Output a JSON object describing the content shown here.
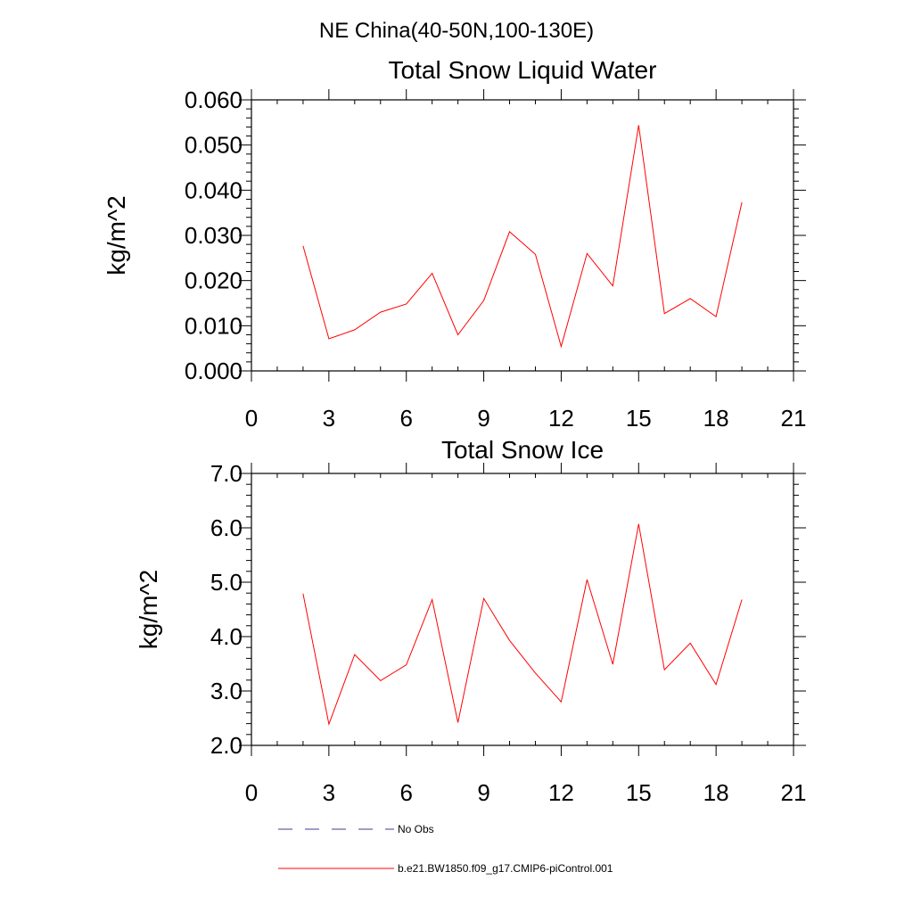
{
  "figure": {
    "suptitle": "NE China(40-50N,100-130E)"
  },
  "colors": {
    "model": "#ff0000",
    "obs": "#3c3c8c"
  },
  "legend": {
    "placement": "bottom-left",
    "entries": [
      {
        "label": "No Obs",
        "style": "dashed",
        "color": "#3c3c8c"
      },
      {
        "label": "b.e21.BW1850.f09_g17.CMIP6-piControl.001",
        "style": "solid",
        "color": "#ff0000"
      }
    ]
  },
  "chart_data": [
    {
      "type": "line",
      "title": "Total Snow Liquid Water",
      "xlabel": "",
      "ylabel": "kg/m^2",
      "xlim": [
        0,
        21
      ],
      "ylim": [
        0.0,
        0.06
      ],
      "xticks": [
        "0",
        "3",
        "6",
        "9",
        "12",
        "15",
        "18",
        "21"
      ],
      "yticks": [
        "0.000",
        "0.010",
        "0.020",
        "0.030",
        "0.040",
        "0.050",
        "0.060"
      ],
      "grid": false,
      "x": [
        2,
        3,
        4,
        5,
        6,
        7,
        8,
        9,
        10,
        11,
        12,
        13,
        14,
        15,
        16,
        17,
        18,
        19
      ],
      "series": [
        {
          "name": "b.e21.BW1850.f09_g17.CMIP6-piControl.001",
          "values": [
            0.0277,
            0.0071,
            0.0091,
            0.013,
            0.0148,
            0.0216,
            0.008,
            0.0156,
            0.0308,
            0.0258,
            0.0054,
            0.026,
            0.0188,
            0.0544,
            0.0127,
            0.016,
            0.012,
            0.0373
          ]
        }
      ]
    },
    {
      "type": "line",
      "title": "Total Snow Ice",
      "xlabel": "",
      "ylabel": "kg/m^2",
      "xlim": [
        0,
        21
      ],
      "ylim": [
        2.0,
        7.0
      ],
      "xticks": [
        "0",
        "3",
        "6",
        "9",
        "12",
        "15",
        "18",
        "21"
      ],
      "yticks": [
        "2.0",
        "3.0",
        "4.0",
        "5.0",
        "6.0",
        "7.0"
      ],
      "grid": false,
      "x": [
        2,
        3,
        4,
        5,
        6,
        7,
        8,
        9,
        10,
        11,
        12,
        13,
        14,
        15,
        16,
        17,
        18,
        19
      ],
      "series": [
        {
          "name": "b.e21.BW1850.f09_g17.CMIP6-piControl.001",
          "values": [
            4.79,
            2.39,
            3.67,
            3.19,
            3.48,
            4.68,
            2.42,
            4.7,
            3.93,
            3.33,
            2.8,
            5.05,
            3.49,
            6.07,
            3.39,
            3.88,
            3.12,
            4.68
          ]
        }
      ]
    }
  ]
}
